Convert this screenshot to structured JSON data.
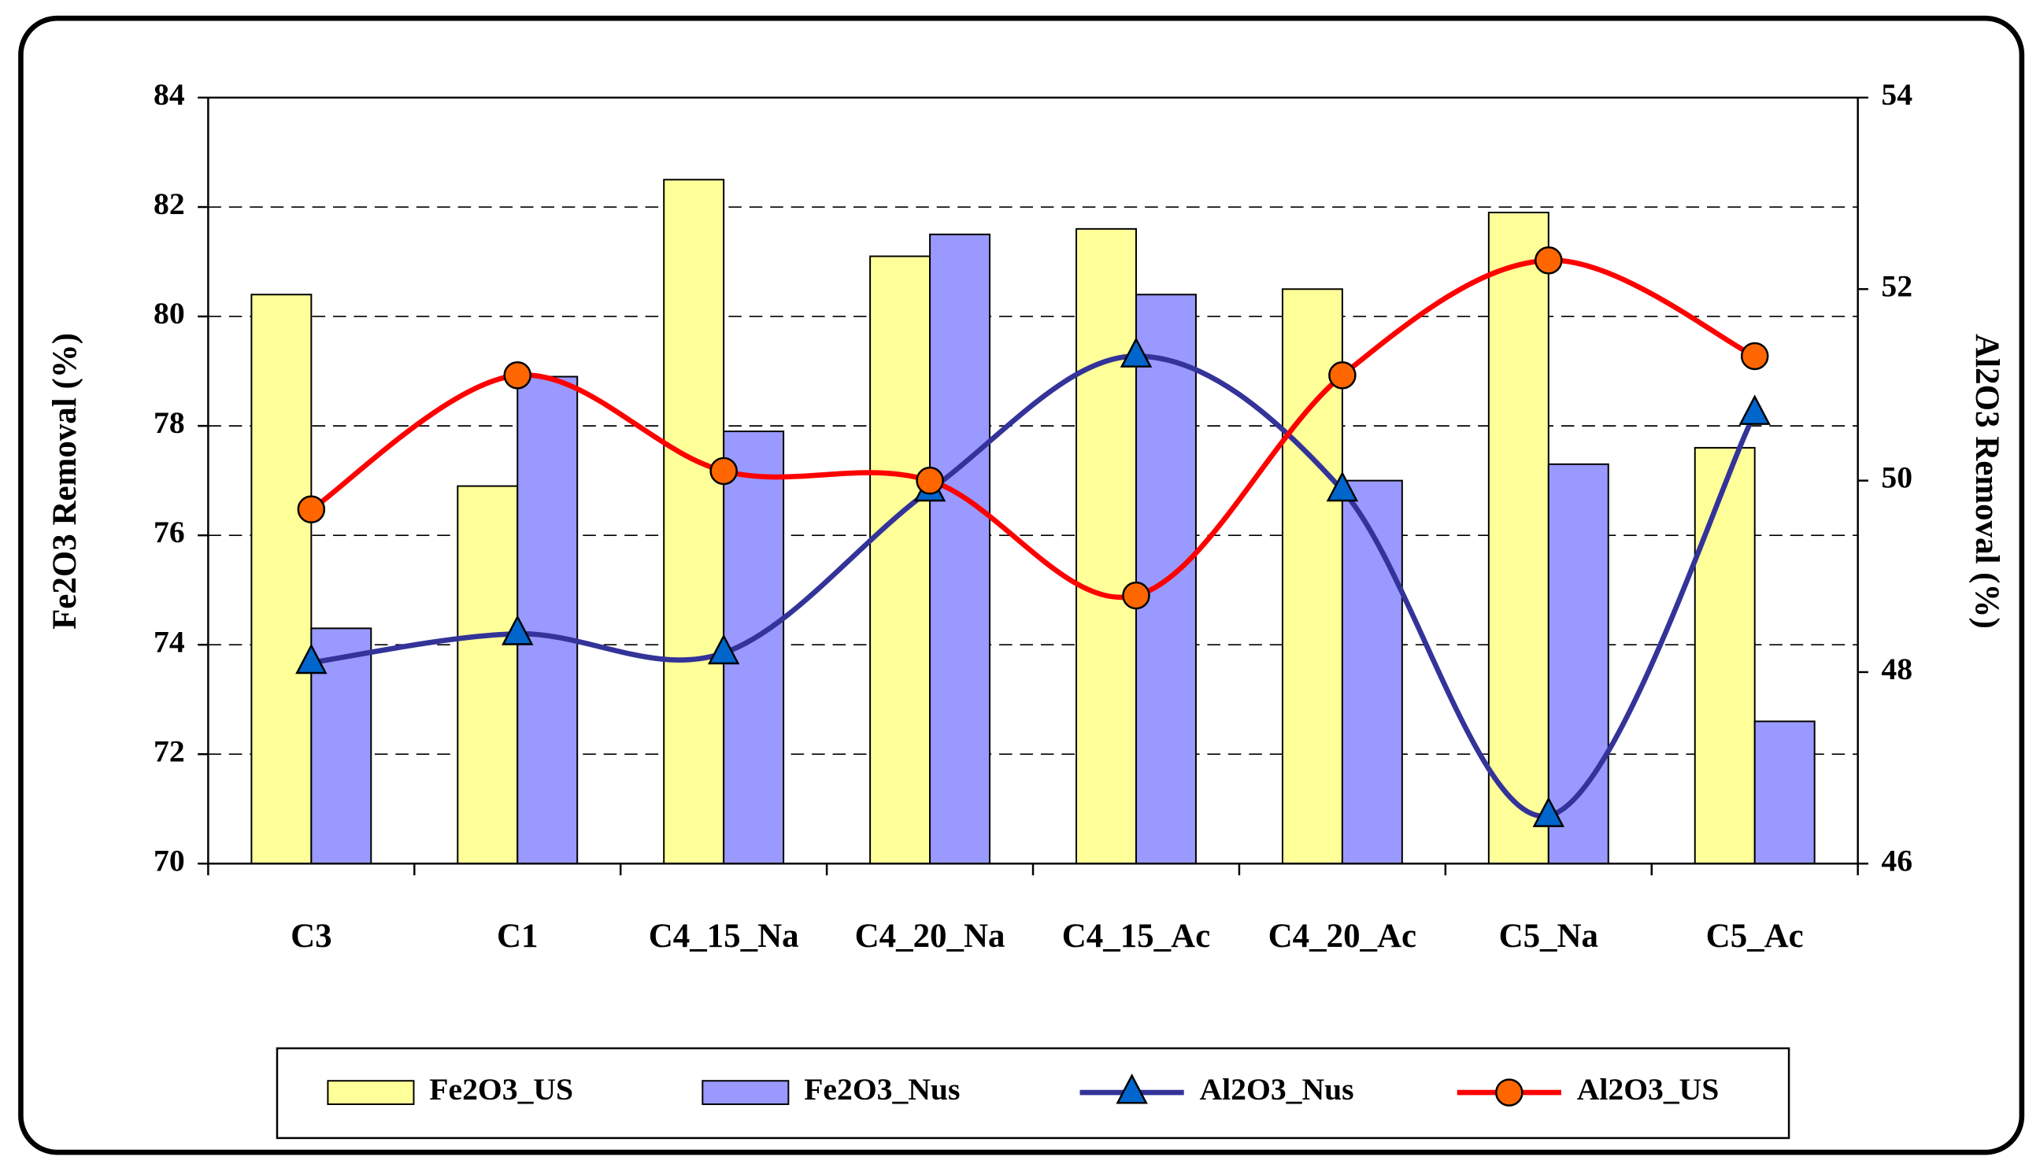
{
  "chart_data": {
    "type": "bar-line",
    "y_label": "Fe2O3 Removal (%)",
    "y2_label": "Al2O3 Removal (%)",
    "categories": [
      "C3",
      "C1",
      "C4_15_Na",
      "C4_20_Na",
      "C4_15_Ac",
      "C4_20_Ac",
      "C5_Na",
      "C5_Ac"
    ],
    "series": [
      {
        "name": "Fe2O3_US",
        "type": "bar",
        "color": "#ffff99",
        "values": [
          80.4,
          76.9,
          82.5,
          81.1,
          81.6,
          80.5,
          81.9,
          77.6
        ]
      },
      {
        "name": "Fe2O3_Nus",
        "type": "bar",
        "color": "#9999ff",
        "values": [
          74.3,
          78.9,
          77.9,
          81.5,
          80.4,
          77.0,
          77.3,
          72.6
        ]
      },
      {
        "name": "Al2O3_Nus",
        "type": "line",
        "axis": "y2",
        "color": "#333399",
        "marker": "triangle",
        "marker_color": "#0066cc",
        "values": [
          48.1,
          48.4,
          48.2,
          49.9,
          51.3,
          49.9,
          46.5,
          50.7
        ]
      },
      {
        "name": "Al2O3_US",
        "type": "line",
        "axis": "y2",
        "color": "#ff0000",
        "marker": "circle",
        "marker_color": "#ff6600",
        "values": [
          49.7,
          51.1,
          50.1,
          50.0,
          48.8,
          51.1,
          52.3,
          51.3
        ]
      }
    ],
    "ylim": [
      70,
      84
    ],
    "yticks": [
      70,
      72,
      74,
      76,
      78,
      80,
      82,
      84
    ],
    "y2lim": [
      46,
      54
    ],
    "y2ticks": [
      46,
      48,
      50,
      52,
      54
    ],
    "grid": true,
    "legend": "bottom"
  }
}
